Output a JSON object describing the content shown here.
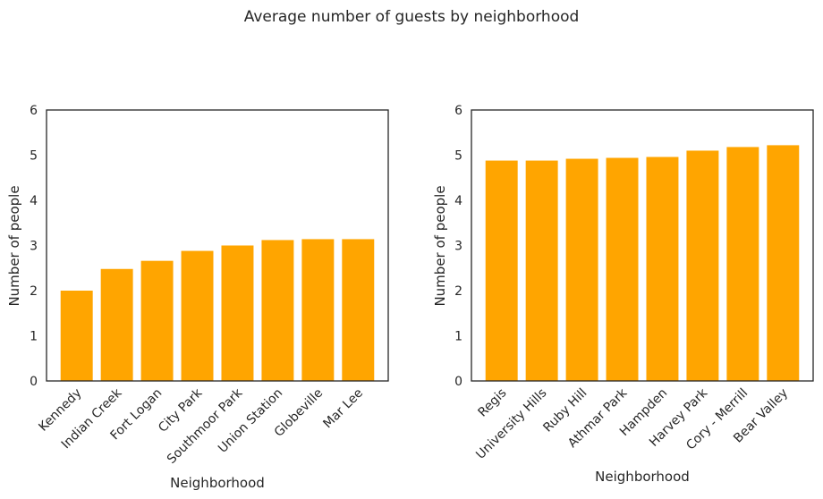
{
  "figure": {
    "title": "Average number of guests by neighborhood",
    "bar_color": "#FFA500"
  },
  "chart_data": [
    {
      "type": "bar",
      "title": "",
      "xlabel": "Neighborhood",
      "ylabel": "Number of people",
      "ylim": [
        0,
        6
      ],
      "yticks": [
        0,
        1,
        2,
        3,
        4,
        5,
        6
      ],
      "categories": [
        "Kennedy",
        "Indian Creek",
        "Fort Logan",
        "City Park",
        "Southmoor Park",
        "Union Station",
        "Globeville",
        "Mar Lee"
      ],
      "values": [
        2.0,
        2.48,
        2.66,
        2.88,
        3.0,
        3.12,
        3.14,
        3.14
      ],
      "grid": false,
      "tick_label_rotation": 45
    },
    {
      "type": "bar",
      "title": "",
      "xlabel": "Neighborhood",
      "ylabel": "Number of people",
      "ylim": [
        0,
        6
      ],
      "yticks": [
        0,
        1,
        2,
        3,
        4,
        5,
        6
      ],
      "categories": [
        "Regis",
        "University Hills",
        "Ruby Hill",
        "Athmar Park",
        "Hampden",
        "Harvey Park",
        "Cory - Merrill",
        "Bear Valley"
      ],
      "values": [
        4.88,
        4.88,
        4.92,
        4.94,
        4.96,
        5.1,
        5.18,
        5.22
      ],
      "grid": false,
      "tick_label_rotation": 45
    }
  ]
}
